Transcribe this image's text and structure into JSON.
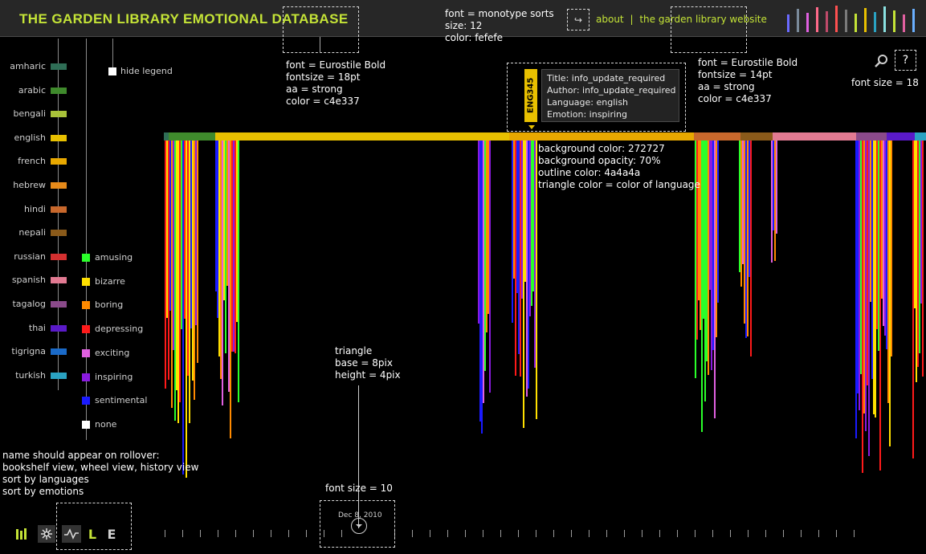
{
  "header": {
    "title": "THE GARDEN LIBRARY EMOTIONAL DATABASE",
    "nav": {
      "about": "about",
      "separator": "|",
      "website": "the garden library website"
    },
    "share_icon": "share-arrow-icon"
  },
  "notes": {
    "header_font": [
      "font = monotype sorts",
      "size: 12",
      "color: fefefe"
    ],
    "title_font": [
      "font = Eurostile Bold",
      "fontsize = 18pt",
      "aa = strong",
      "color = c4e337"
    ],
    "nav_font": [
      "font = Eurostile Bold",
      "fontsize = 14pt",
      "aa = strong",
      "color = c4e337"
    ],
    "icons_font": "font size = 18",
    "tooltip_style": [
      "background color: 272727",
      "background opacity: 70%",
      "outline color: 4a4a4a",
      "triangle color = color of language"
    ],
    "triangle": [
      "triangle",
      "base = 8pix",
      "height = 4pix"
    ],
    "rollover": [
      "name should appear on rollover:",
      "bookshelf view, wheel view, history view",
      "sort by languages",
      "sort by emotions"
    ],
    "date_font": "font size = 10"
  },
  "legend": {
    "hide_label": "hide legend",
    "languages": [
      {
        "label": "amharic",
        "color": "#2f6e56"
      },
      {
        "label": "arabic",
        "color": "#3f8a2c"
      },
      {
        "label": "bengali",
        "color": "#a9c23a"
      },
      {
        "label": "english",
        "color": "#e8c000"
      },
      {
        "label": "french",
        "color": "#e8a800"
      },
      {
        "label": "hebrew",
        "color": "#e68a1a"
      },
      {
        "label": "hindi",
        "color": "#c8682c"
      },
      {
        "label": "nepali",
        "color": "#8a5a1a"
      },
      {
        "label": "russian",
        "color": "#d43030"
      },
      {
        "label": "spanish",
        "color": "#e27a92"
      },
      {
        "label": "tagalog",
        "color": "#8a4a8a"
      },
      {
        "label": "thai",
        "color": "#5a1ac8"
      },
      {
        "label": "tigrigna",
        "color": "#1a6ac8"
      },
      {
        "label": "turkish",
        "color": "#2aa2c2"
      }
    ],
    "emotions": [
      {
        "label": "amusing",
        "color": "#2aff2a"
      },
      {
        "label": "bizarre",
        "color": "#ffe000"
      },
      {
        "label": "boring",
        "color": "#ff8a00"
      },
      {
        "label": "depressing",
        "color": "#ff1a1a"
      },
      {
        "label": "exciting",
        "color": "#e060e0"
      },
      {
        "label": "inspiring",
        "color": "#8a1ae0"
      },
      {
        "label": "sentimental",
        "color": "#1a1aff"
      },
      {
        "label": "none",
        "color": "#ffffff"
      }
    ]
  },
  "tooltip": {
    "code": "ENG345",
    "title": "Title: info_update_required",
    "author": "Author: info_update_required",
    "language": "Language: english",
    "emotion": "Emotion: inspiring",
    "triangle_color": "#e8c000"
  },
  "timeline": {
    "date": "Dec 8, 2010"
  },
  "views": {
    "bookshelf_icon": "bookshelf-icon",
    "wheel_icon": "wheel-icon",
    "history_icon": "history-icon",
    "sort_languages": "L",
    "sort_emotions": "E"
  },
  "search_icon": "search-icon",
  "help_label": "?"
}
